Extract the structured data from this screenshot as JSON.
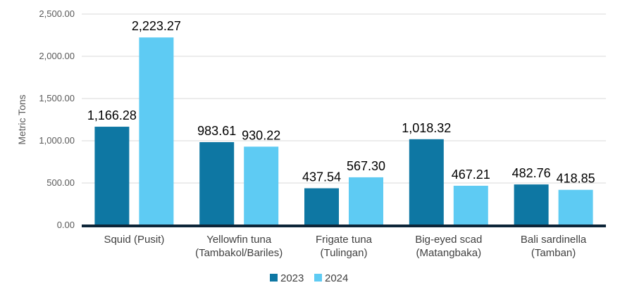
{
  "chart_data": {
    "type": "bar",
    "title": "",
    "xlabel": "",
    "ylabel": "Metric Tons",
    "ylim": [
      0,
      2500
    ],
    "yticks": [
      "0.00",
      "500.00",
      "1,000.00",
      "1,500.00",
      "2,000.00",
      "2,500.00"
    ],
    "grid": true,
    "legend_position": "bottom",
    "categories": [
      [
        "Squid (Pusit)"
      ],
      [
        "Yellowfin tuna",
        "(Tambakol/Bariles)"
      ],
      [
        "Frigate tuna",
        "(Tulingan)"
      ],
      [
        "Big-eyed scad",
        "(Matangbaka)"
      ],
      [
        "Bali sardinella",
        "(Tamban)"
      ]
    ],
    "series": [
      {
        "name": "2023",
        "color": "#0e77a3",
        "values": [
          1166.28,
          983.61,
          437.54,
          1018.32,
          482.76
        ],
        "labels": [
          "1,166.28",
          "983.61",
          "437.54",
          "1,018.32",
          "482.76"
        ]
      },
      {
        "name": "2024",
        "color": "#5ecbf3",
        "values": [
          2223.27,
          930.22,
          567.3,
          467.21,
          418.85
        ],
        "labels": [
          "2,223.27",
          "930.22",
          "567.30",
          "467.21",
          "418.85"
        ]
      }
    ]
  }
}
